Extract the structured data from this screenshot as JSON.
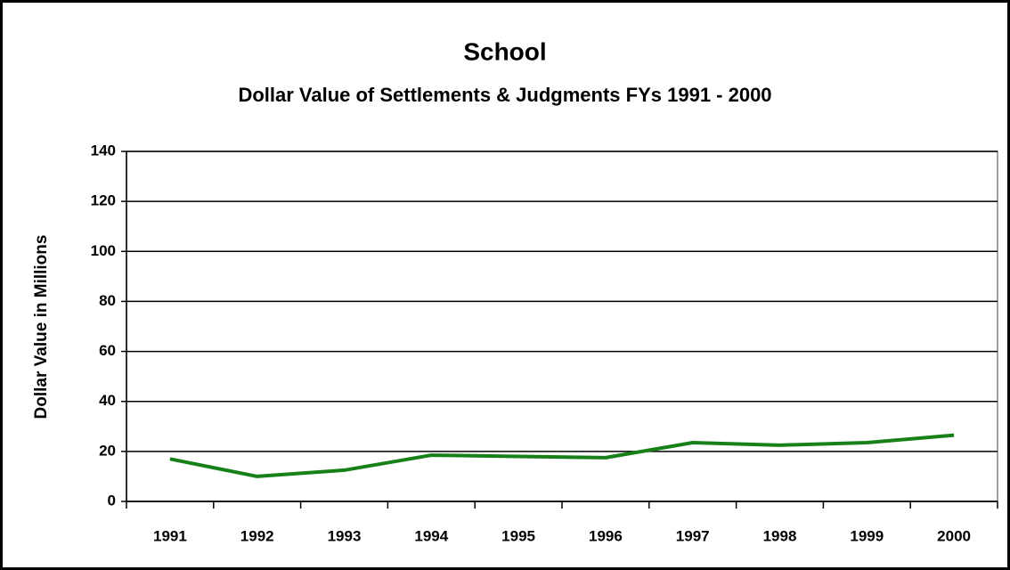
{
  "chart_data": {
    "type": "line",
    "title": "School",
    "subtitle": "Dollar Value of Settlements & Judgments FYs 1991 - 2000",
    "y_label": "Dollar Value in Millions",
    "categories": [
      "1991",
      "1992",
      "1993",
      "1994",
      "1995",
      "1996",
      "1997",
      "1998",
      "1999",
      "2000"
    ],
    "series": [
      {
        "name": "School",
        "color": "#188018",
        "values": [
          17,
          10,
          12.5,
          18.5,
          18,
          17.5,
          23.5,
          22.5,
          23.5,
          26.5
        ]
      }
    ],
    "ylim": [
      0,
      140
    ],
    "yticks": [
      0,
      20,
      40,
      60,
      80,
      100,
      120,
      140
    ],
    "grid": true
  }
}
